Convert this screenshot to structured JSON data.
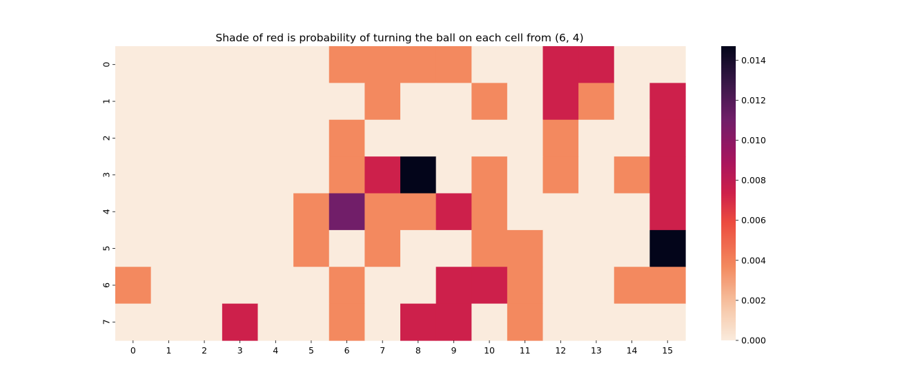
{
  "chart_data": {
    "type": "heatmap",
    "title": "Shade of red is probability of turning the ball on each cell from (6, 4)",
    "x_ticks": [
      "0",
      "1",
      "2",
      "3",
      "4",
      "5",
      "6",
      "7",
      "8",
      "9",
      "10",
      "11",
      "12",
      "13",
      "14",
      "15"
    ],
    "y_ticks": [
      "0",
      "1",
      "2",
      "3",
      "4",
      "5",
      "6",
      "7"
    ],
    "values": [
      [
        0,
        0,
        0,
        0,
        0,
        0,
        0.0037,
        0.0037,
        0.0037,
        0.0037,
        0,
        0,
        0.0074,
        0.0074,
        0,
        0
      ],
      [
        0,
        0,
        0,
        0,
        0,
        0,
        0,
        0.0037,
        0,
        0,
        0.0037,
        0,
        0.0074,
        0.0037,
        0,
        0.0074
      ],
      [
        0,
        0,
        0,
        0,
        0,
        0,
        0.0037,
        0,
        0,
        0,
        0,
        0,
        0.0037,
        0,
        0,
        0.0074
      ],
      [
        0,
        0,
        0,
        0,
        0,
        0,
        0.0037,
        0.0074,
        0.0147,
        0,
        0.0037,
        0,
        0.0037,
        0,
        0.0037,
        0.0074
      ],
      [
        0,
        0,
        0,
        0,
        0,
        0.0037,
        0.011,
        0.0037,
        0.0037,
        0.0074,
        0.0037,
        0,
        0,
        0,
        0,
        0.0074
      ],
      [
        0,
        0,
        0,
        0,
        0,
        0.0037,
        0,
        0.0037,
        0,
        0,
        0.0037,
        0.0037,
        0,
        0,
        0,
        0.0147
      ],
      [
        0.0037,
        0,
        0,
        0,
        0,
        0,
        0.0037,
        0,
        0,
        0.0074,
        0.0074,
        0.0037,
        0,
        0,
        0.0037,
        0.0037
      ],
      [
        0,
        0,
        0,
        0.0074,
        0,
        0,
        0.0037,
        0,
        0.0074,
        0.0074,
        0,
        0.0037,
        0,
        0,
        0,
        0
      ]
    ],
    "colorbar": {
      "min": 0,
      "max": 0.0147,
      "ticks": [
        "0.000",
        "0.002",
        "0.004",
        "0.006",
        "0.008",
        "0.010",
        "0.012",
        "0.014"
      ],
      "tick_values": [
        0,
        0.002,
        0.004,
        0.006,
        0.008,
        0.01,
        0.012,
        0.014
      ],
      "colormap": "rocket_r"
    },
    "grid": false
  }
}
